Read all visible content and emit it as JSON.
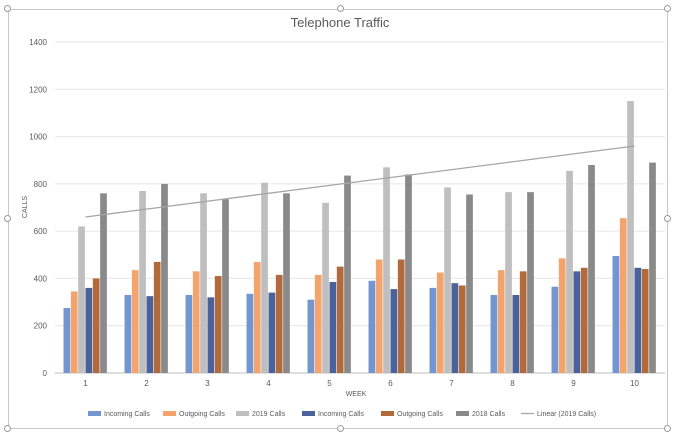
{
  "chart_data": {
    "type": "bar",
    "title": "Telephone Traffic",
    "xlabel": "WEEK",
    "ylabel": "CALLS",
    "categories": [
      "1",
      "2",
      "3",
      "4",
      "5",
      "6",
      "7",
      "8",
      "9",
      "10"
    ],
    "ylim": [
      0,
      1400
    ],
    "yticks": [
      0,
      200,
      400,
      600,
      800,
      1000,
      1200,
      1400
    ],
    "grid": true,
    "legend_position": "bottom",
    "series": [
      {
        "name": "Incoming Calls",
        "color": "#7396d1",
        "values": [
          275,
          330,
          330,
          335,
          310,
          390,
          360,
          330,
          365,
          495
        ]
      },
      {
        "name": "Outgoing Calls",
        "color": "#f3a46d",
        "values": [
          345,
          435,
          430,
          470,
          415,
          480,
          425,
          435,
          485,
          655
        ]
      },
      {
        "name": "2019 Calls",
        "color": "#bfbfbf",
        "values": [
          620,
          770,
          760,
          805,
          720,
          870,
          785,
          765,
          855,
          1150
        ]
      },
      {
        "name": "Incoming Calls",
        "color": "#4a6199",
        "values": [
          360,
          325,
          320,
          340,
          385,
          355,
          380,
          330,
          430,
          445
        ]
      },
      {
        "name": "Outgoing Calls",
        "color": "#b06a3b",
        "values": [
          400,
          470,
          410,
          415,
          450,
          480,
          370,
          430,
          445,
          440
        ]
      },
      {
        "name": "2018 Calls",
        "color": "#8a8a8a",
        "values": [
          760,
          800,
          735,
          760,
          835,
          840,
          755,
          765,
          880,
          890
        ]
      }
    ],
    "trendline": {
      "name": "Linear (2019 Calls)",
      "color": "#a6a6a6",
      "type": "linear",
      "of_series": "2019 Calls",
      "start": 660,
      "end": 960
    }
  }
}
